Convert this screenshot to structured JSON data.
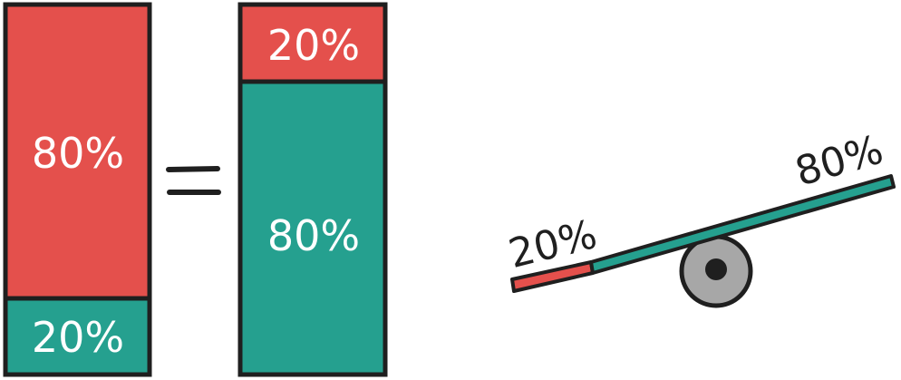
{
  "left_bar": {
    "top": {
      "label": "80%",
      "color": "#e4504c"
    },
    "bottom": {
      "label": "20%",
      "color": "#25a08f"
    }
  },
  "equals_sign": "=",
  "right_bar": {
    "top": {
      "label": "20%",
      "color": "#e4504c"
    },
    "bottom": {
      "label": "80%",
      "color": "#25a08f"
    }
  },
  "seesaw": {
    "left_label": "20%",
    "right_label": "80%",
    "left_color": "#e4504c",
    "right_color": "#25a08f",
    "pivot_color": "#a7a7a7"
  },
  "outline_color": "#1f1f1f",
  "text_on_fill_color": "#ffffff"
}
